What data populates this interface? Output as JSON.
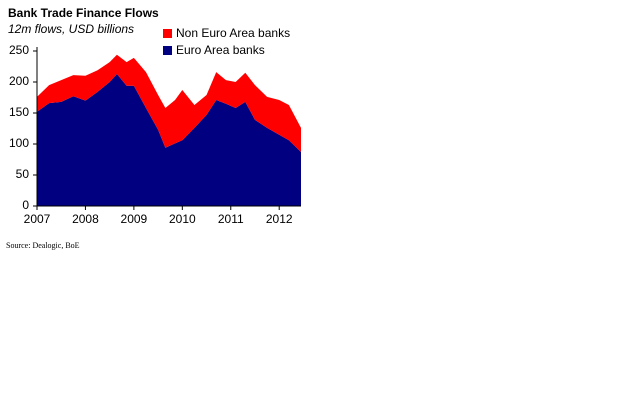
{
  "chart_data": {
    "type": "stacked-area",
    "title": "Bank Trade Finance Flows",
    "subtitle": "12m flows, USD billions",
    "source": "Source: Dealogic, BoE",
    "x": [
      2007.0,
      2007.25,
      2007.5,
      2007.75,
      2008.0,
      2008.25,
      2008.5,
      2008.65,
      2008.85,
      2009.0,
      2009.25,
      2009.5,
      2009.65,
      2009.85,
      2010.0,
      2010.25,
      2010.5,
      2010.7,
      2010.9,
      2011.1,
      2011.3,
      2011.5,
      2011.75,
      2012.0,
      2012.2,
      2012.45
    ],
    "xlim": [
      2007,
      2012.45
    ],
    "xticks": [
      2007,
      2008,
      2009,
      2010,
      2011,
      2012
    ],
    "ylim": [
      0,
      250
    ],
    "yticks": [
      0,
      50,
      100,
      150,
      200,
      250
    ],
    "series": [
      {
        "name": "Euro Area banks",
        "color": "#000080",
        "values": [
          152,
          166,
          168,
          177,
          170,
          184,
          200,
          213,
          194,
          194,
          158,
          123,
          94,
          101,
          106,
          126,
          147,
          171,
          165,
          158,
          168,
          139,
          126,
          115,
          106,
          87
        ]
      },
      {
        "name": "Non Euro Area banks",
        "color": "#ff0000",
        "values": [
          24,
          29,
          35,
          34,
          40,
          35,
          32,
          31,
          38,
          45,
          58,
          56,
          64,
          70,
          81,
          37,
          32,
          45,
          38,
          42,
          47,
          56,
          50,
          56,
          57,
          39
        ]
      }
    ]
  }
}
